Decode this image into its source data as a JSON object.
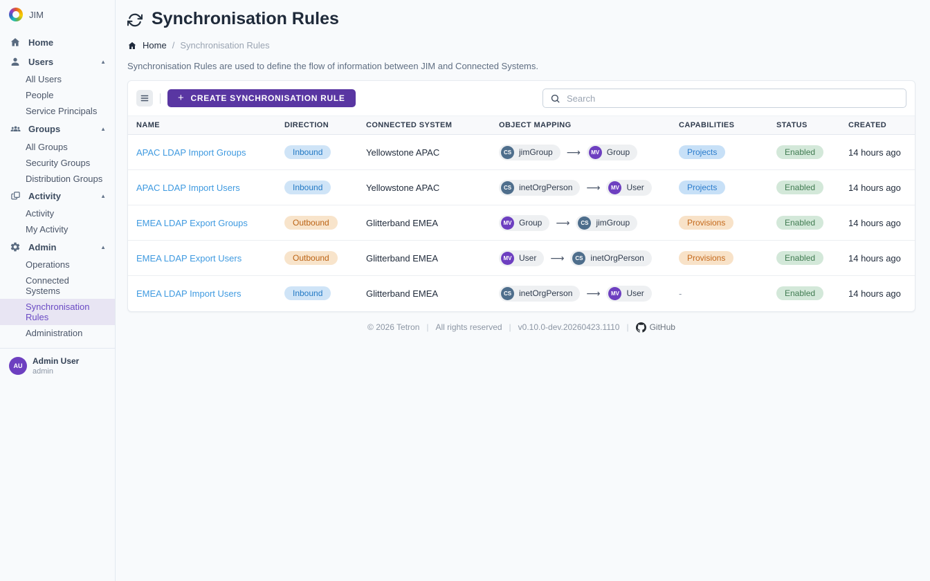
{
  "app": {
    "name": "JIM"
  },
  "sidebar": {
    "sections": [
      {
        "label": "Home",
        "icon": "home-icon"
      },
      {
        "label": "Users",
        "icon": "user-icon",
        "children": [
          "All Users",
          "People",
          "Service Principals"
        ]
      },
      {
        "label": "Groups",
        "icon": "groups-icon",
        "children": [
          "All Groups",
          "Security Groups",
          "Distribution Groups"
        ]
      },
      {
        "label": "Activity",
        "icon": "activity-icon",
        "children": [
          "Activity",
          "My Activity"
        ]
      },
      {
        "label": "Admin",
        "icon": "gear-icon",
        "children": [
          "Operations",
          "Connected Systems",
          "Synchronisation Rules",
          "Administration"
        ],
        "active_child": "Synchronisation Rules"
      }
    ],
    "user": {
      "name": "Admin User",
      "username": "admin",
      "initials": "AU"
    }
  },
  "header": {
    "title": "Synchronisation Rules",
    "breadcrumb": {
      "home": "Home",
      "separator": "/",
      "current": "Synchronisation Rules"
    },
    "description": "Synchronisation Rules are used to define the flow of information between JIM and Connected Systems."
  },
  "toolbar": {
    "create_label": "CREATE SYNCHRONISATION RULE",
    "create_plus": "+",
    "search_placeholder": "Search"
  },
  "table": {
    "headers": [
      "NAME",
      "DIRECTION",
      "CONNECTED SYSTEM",
      "OBJECT MAPPING",
      "CAPABILITIES",
      "STATUS",
      "CREATED"
    ],
    "rows": [
      {
        "name": "APAC LDAP Import Groups",
        "direction": "Inbound",
        "connected_system": "Yellowstone APAC",
        "mapping": {
          "from": {
            "kind": "cs",
            "initials": "CS",
            "label": "jimGroup"
          },
          "arrow": "⟶",
          "to": {
            "kind": "mv",
            "initials": "MV",
            "label": "Group"
          }
        },
        "capabilities": "Projects",
        "capability_color": "blue",
        "status": "Enabled",
        "created": "14 hours ago"
      },
      {
        "name": "APAC LDAP Import Users",
        "direction": "Inbound",
        "connected_system": "Yellowstone APAC",
        "mapping": {
          "from": {
            "kind": "cs",
            "initials": "CS",
            "label": "inetOrgPerson"
          },
          "arrow": "⟶",
          "to": {
            "kind": "mv",
            "initials": "MV",
            "label": "User"
          }
        },
        "capabilities": "Projects",
        "capability_color": "blue",
        "status": "Enabled",
        "created": "14 hours ago"
      },
      {
        "name": "EMEA LDAP Export Groups",
        "direction": "Outbound",
        "connected_system": "Glitterband EMEA",
        "mapping": {
          "from": {
            "kind": "mv",
            "initials": "MV",
            "label": "Group"
          },
          "arrow": "⟶",
          "to": {
            "kind": "cs",
            "initials": "CS",
            "label": "jimGroup"
          }
        },
        "capabilities": "Provisions",
        "capability_color": "orange",
        "status": "Enabled",
        "created": "14 hours ago"
      },
      {
        "name": "EMEA LDAP Export Users",
        "direction": "Outbound",
        "connected_system": "Glitterband EMEA",
        "mapping": {
          "from": {
            "kind": "mv",
            "initials": "MV",
            "label": "User"
          },
          "arrow": "⟶",
          "to": {
            "kind": "cs",
            "initials": "CS",
            "label": "inetOrgPerson"
          }
        },
        "capabilities": "Provisions",
        "capability_color": "orange",
        "status": "Enabled",
        "created": "14 hours ago"
      },
      {
        "name": "EMEA LDAP Import Users",
        "direction": "Inbound",
        "connected_system": "Glitterband EMEA",
        "mapping": {
          "from": {
            "kind": "cs",
            "initials": "CS",
            "label": "inetOrgPerson"
          },
          "arrow": "⟶",
          "to": {
            "kind": "mv",
            "initials": "MV",
            "label": "User"
          }
        },
        "capabilities": "-",
        "capability_color": null,
        "status": "Enabled",
        "created": "14 hours ago"
      }
    ]
  },
  "footer": {
    "copyright": "© 2026  Tetron",
    "rights": "All rights reserved",
    "version": "v0.10.0-dev.20260423.1110",
    "github": "GitHub",
    "separator": "|"
  },
  "colors": {
    "accent_purple": "#5936a2",
    "link_blue": "#3f9ae0",
    "badge_inbound_bg": "#cfe4f7",
    "badge_inbound_text": "#2379c4",
    "badge_outbound_bg": "#f8e4cb",
    "badge_outbound_text": "#bb6314",
    "badge_enabled_bg": "#d3e8d9",
    "badge_enabled_text": "#417c52",
    "avatar_cs": "#4e6e8c",
    "avatar_mv": "#6d3fc0",
    "avatar_user": "#6d3fc0"
  }
}
